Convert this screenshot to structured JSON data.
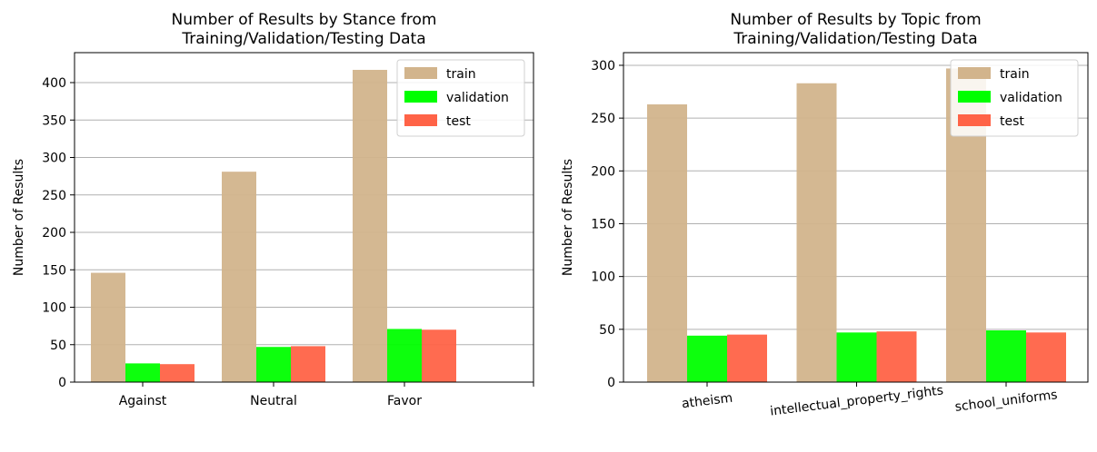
{
  "chart_data": [
    {
      "type": "bar",
      "title_lines": [
        "Number of Results by Stance from",
        "Training/Validation/Testing Data"
      ],
      "xlabel": "",
      "ylabel": "Number of Results",
      "categories": [
        "Against",
        "Neutral",
        "Favor"
      ],
      "series": [
        {
          "name": "train",
          "values": [
            146,
            281,
            417
          ]
        },
        {
          "name": "validation",
          "values": [
            25,
            47,
            71
          ]
        },
        {
          "name": "test",
          "values": [
            24,
            48,
            70
          ]
        }
      ],
      "ylim": [
        0,
        440
      ],
      "yticks": [
        0,
        50,
        100,
        150,
        200,
        250,
        300,
        350,
        400
      ],
      "grid": "y",
      "legend": "top-right"
    },
    {
      "type": "bar",
      "title_lines": [
        "Number of Results by Topic from",
        "Training/Validation/Testing Data"
      ],
      "xlabel": "",
      "ylabel": "Number of Results",
      "categories": [
        "atheism",
        "intellectual_property_rights",
        "school_uniforms"
      ],
      "series": [
        {
          "name": "train",
          "values": [
            263,
            283,
            297
          ]
        },
        {
          "name": "validation",
          "values": [
            44,
            47,
            49
          ]
        },
        {
          "name": "test",
          "values": [
            45,
            48,
            47
          ]
        }
      ],
      "ylim": [
        0,
        312
      ],
      "yticks": [
        0,
        50,
        100,
        150,
        200,
        250,
        300
      ],
      "grid": "y",
      "legend": "top-right"
    }
  ],
  "colors": {
    "train": "#d2b48c",
    "validation": "#00ff00",
    "test": "#ff6347"
  }
}
